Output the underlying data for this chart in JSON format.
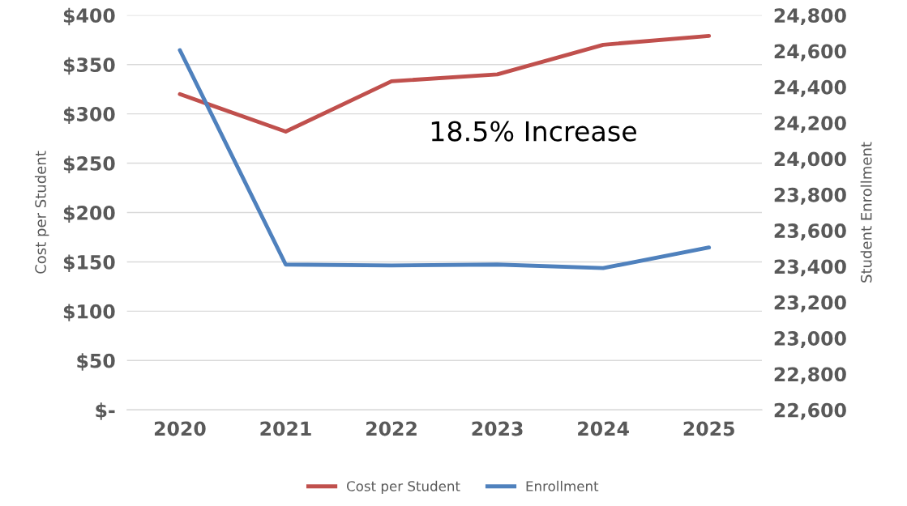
{
  "chart_data": {
    "type": "line",
    "categories": [
      "2020",
      "2021",
      "2022",
      "2023",
      "2024",
      "2025"
    ],
    "series": [
      {
        "name": "Cost per Student",
        "color": "#c0504d",
        "values": [
          320,
          282,
          333,
          340,
          370,
          379
        ]
      },
      {
        "name": "Enrollment",
        "color": "#4f81bd",
        "values": [
          24605,
          23410,
          23405,
          23410,
          23390,
          23505
        ],
        "axis": "y2"
      }
    ],
    "ylabel": "Cost per Student",
    "y2label": "Student Enrollment",
    "ylim": [
      0,
      400
    ],
    "yticks": [
      {
        "value": 0,
        "label": "$-"
      },
      {
        "value": 50,
        "label": "$50"
      },
      {
        "value": 100,
        "label": "$100"
      },
      {
        "value": 150,
        "label": "$150"
      },
      {
        "value": 200,
        "label": "$200"
      },
      {
        "value": 250,
        "label": "$250"
      },
      {
        "value": 300,
        "label": "$300"
      },
      {
        "value": 350,
        "label": "$350"
      },
      {
        "value": 400,
        "label": "$400"
      }
    ],
    "y2lim": [
      22600,
      24800
    ],
    "y2ticks": [
      {
        "value": 22600,
        "label": "22,600"
      },
      {
        "value": 22800,
        "label": "22,800"
      },
      {
        "value": 23000,
        "label": "23,000"
      },
      {
        "value": 23200,
        "label": "23,200"
      },
      {
        "value": 23400,
        "label": "23,400"
      },
      {
        "value": 23600,
        "label": "23,600"
      },
      {
        "value": 23800,
        "label": "23,800"
      },
      {
        "value": 24000,
        "label": "24,000"
      },
      {
        "value": 24200,
        "label": "24,200"
      },
      {
        "value": 24400,
        "label": "24,400"
      },
      {
        "value": 24600,
        "label": "24,600"
      },
      {
        "value": 24800,
        "label": "24,800"
      }
    ],
    "annotations": [
      "18.5% Increase"
    ],
    "grid": "y",
    "legend": "bottom",
    "marker": "none",
    "line_style": "solid"
  }
}
